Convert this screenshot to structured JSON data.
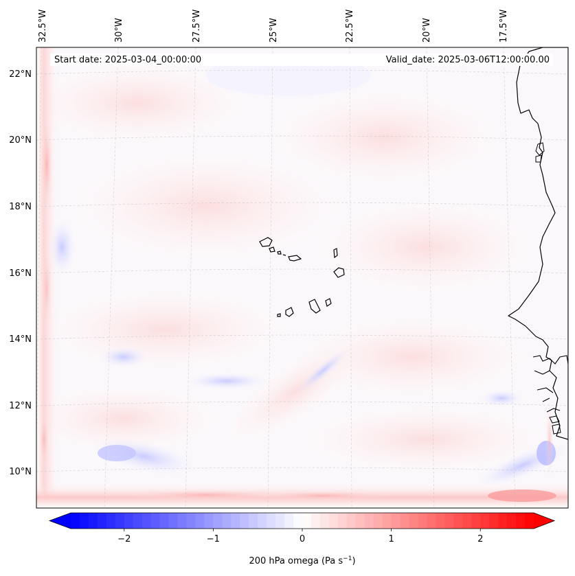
{
  "map": {
    "start_date": "Start date: 2025-03-04_00:00:00",
    "valid_date": "Valid_date: 2025-03-06T12:00:00.00",
    "lon_labels": [
      "32.5°W",
      "30°W",
      "27.5°W",
      "25°W",
      "22.5°W",
      "20°W",
      "17.5°W"
    ],
    "lat_labels": [
      "22°N",
      "20°N",
      "18°N",
      "16°N",
      "14°N",
      "12°N",
      "10°N"
    ],
    "field_name": "200 hPa omega"
  },
  "colorbar": {
    "label_prefix": "200 hPa omega (Pa s",
    "label_exp": "−1",
    "label_suffix": ")",
    "ticks": [
      "−2",
      "−1",
      "0",
      "1",
      "2"
    ],
    "min": -2.6,
    "max": 2.6,
    "colors": {
      "negative": "#0000ff",
      "zero": "#ffffff",
      "positive": "#ff0000"
    }
  }
}
